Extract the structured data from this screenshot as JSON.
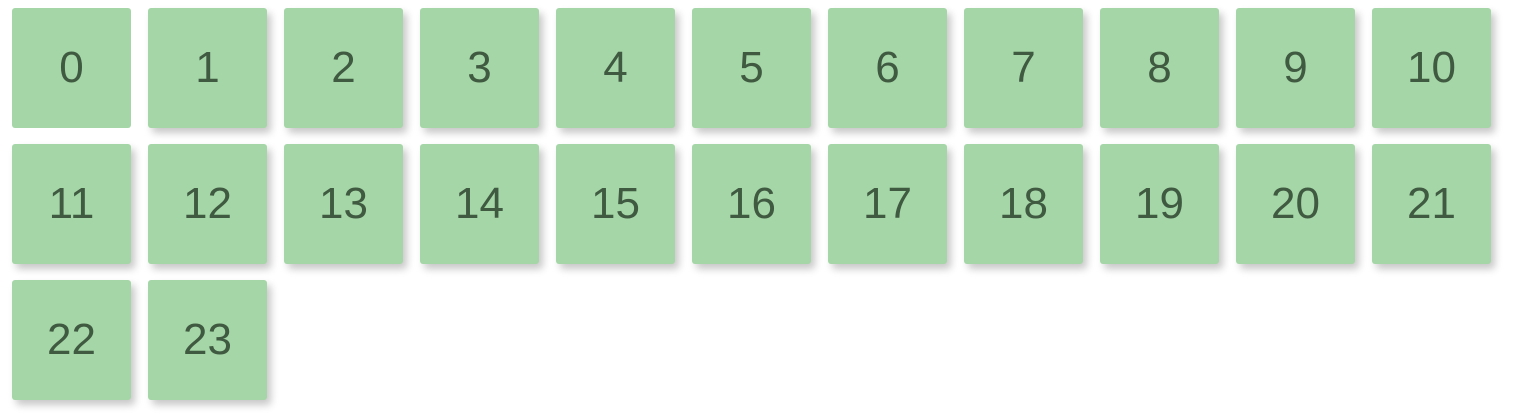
{
  "tiles": [
    {
      "label": "0"
    },
    {
      "label": "1"
    },
    {
      "label": "2"
    },
    {
      "label": "3"
    },
    {
      "label": "4"
    },
    {
      "label": "5"
    },
    {
      "label": "6"
    },
    {
      "label": "7"
    },
    {
      "label": "8"
    },
    {
      "label": "9"
    },
    {
      "label": "10"
    },
    {
      "label": "11"
    },
    {
      "label": "12"
    },
    {
      "label": "13"
    },
    {
      "label": "14"
    },
    {
      "label": "15"
    },
    {
      "label": "16"
    },
    {
      "label": "17"
    },
    {
      "label": "18"
    },
    {
      "label": "19"
    },
    {
      "label": "20"
    },
    {
      "label": "21"
    },
    {
      "label": "22"
    },
    {
      "label": "23"
    }
  ],
  "colors": {
    "tile_background": "#a5d6a7",
    "tile_text": "#3f5a40",
    "page_background": "#ffffff"
  }
}
